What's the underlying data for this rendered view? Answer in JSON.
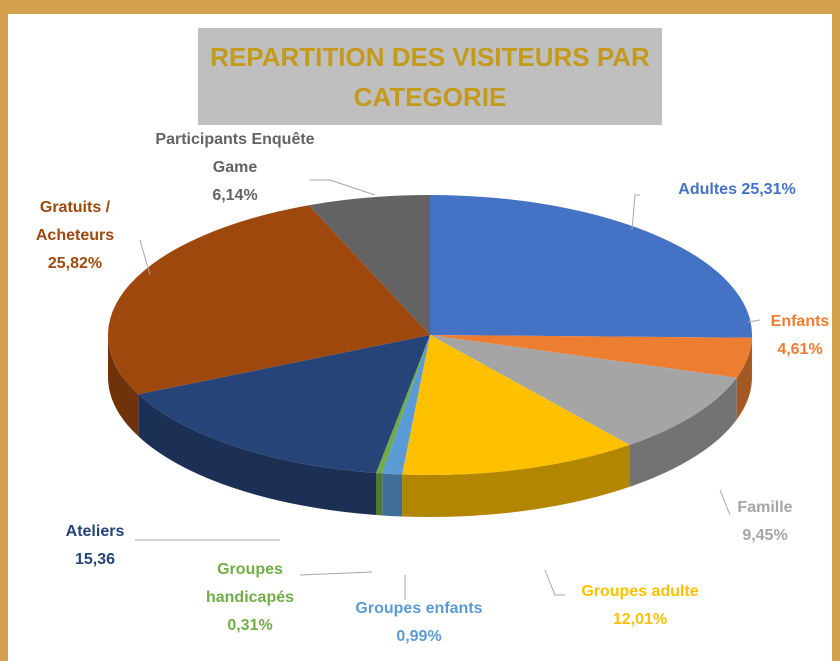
{
  "chart_data": {
    "type": "pie",
    "title": "REPARTITION DES VISITEURS PAR CATEGORIE",
    "categories": [
      "Adultes",
      "Enfants",
      "Famille",
      "Groupes adulte",
      "Groupes enfants",
      "Groupes handicapés",
      "Ateliers",
      "Gratuits / Acheteurs",
      "Participants Enquête Game"
    ],
    "values": [
      25.31,
      4.61,
      9.45,
      12.01,
      0.99,
      0.31,
      15.36,
      25.82,
      6.14
    ],
    "value_labels": [
      "25,31%",
      "4,61%",
      "9,45%",
      "12,01%",
      "0,99%",
      "0,31%",
      "15,36",
      "25,82%",
      "6,14%"
    ],
    "colors": [
      "#4472c4",
      "#ed7d31",
      "#a5a5a5",
      "#ffc000",
      "#5b9bd5",
      "#70ad47",
      "#264478",
      "#9e480e",
      "#636363"
    ]
  }
}
